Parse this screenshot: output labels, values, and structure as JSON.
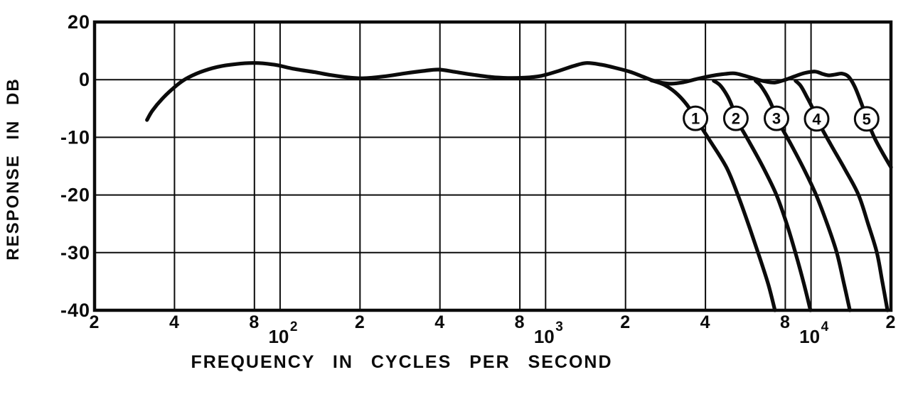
{
  "figure": {
    "background": "#ffffff",
    "ink": "#0b0b0b"
  },
  "chart_data": {
    "type": "line",
    "title": "",
    "xlabel": "FREQUENCY IN CYCLES PER SECOND",
    "ylabel": "RESPONSE IN DB",
    "x_scale": "log",
    "x_range_hz": [
      20,
      20000
    ],
    "grid": "on",
    "y_ticks": [
      {
        "label": "20",
        "db": 20
      },
      {
        "label": "0",
        "db": 0
      },
      {
        "label": "-10",
        "db": -10
      },
      {
        "label": "-20",
        "db": -20
      },
      {
        "label": "-30",
        "db": -30
      },
      {
        "label": "-40",
        "db": -40
      }
    ],
    "x_ticks": [
      {
        "label": "2",
        "hz": 20
      },
      {
        "label": "4",
        "hz": 40
      },
      {
        "label": "8",
        "hz": 80
      },
      {
        "label": "10",
        "exp": "2",
        "hz": 100
      },
      {
        "label": "2",
        "hz": 200
      },
      {
        "label": "4",
        "hz": 400
      },
      {
        "label": "8",
        "hz": 800
      },
      {
        "label": "10",
        "exp": "3",
        "hz": 1000
      },
      {
        "label": "2",
        "hz": 2000
      },
      {
        "label": "4",
        "hz": 4000
      },
      {
        "label": "8",
        "hz": 8000
      },
      {
        "label": "10",
        "exp": "4",
        "hz": 10000
      },
      {
        "label": "2",
        "hz": 20000
      }
    ],
    "series": [
      {
        "name": "common-response-and-position-5-rolloff",
        "points": [
          [
            31.5,
            -7.0
          ],
          [
            33,
            -5.4
          ],
          [
            36,
            -3.3
          ],
          [
            40,
            -1.3
          ],
          [
            44,
            0.1
          ],
          [
            50,
            1.3
          ],
          [
            58,
            2.2
          ],
          [
            68,
            2.7
          ],
          [
            80,
            2.9
          ],
          [
            95,
            2.6
          ],
          [
            112,
            1.9
          ],
          [
            135,
            1.3
          ],
          [
            155,
            0.8
          ],
          [
            180,
            0.4
          ],
          [
            205,
            0.25
          ],
          [
            245,
            0.55
          ],
          [
            295,
            1.1
          ],
          [
            345,
            1.5
          ],
          [
            395,
            1.75
          ],
          [
            455,
            1.35
          ],
          [
            535,
            0.85
          ],
          [
            625,
            0.45
          ],
          [
            720,
            0.3
          ],
          [
            835,
            0.35
          ],
          [
            960,
            0.65
          ],
          [
            1100,
            1.4
          ],
          [
            1280,
            2.4
          ],
          [
            1430,
            2.9
          ],
          [
            1620,
            2.6
          ],
          [
            1850,
            2.0
          ],
          [
            2100,
            1.3
          ],
          [
            2330,
            0.5
          ],
          [
            2540,
            -0.15
          ],
          [
            2750,
            -0.55
          ],
          [
            2980,
            -0.7
          ],
          [
            3300,
            -0.45
          ],
          [
            3700,
            0.1
          ],
          [
            4200,
            0.65
          ],
          [
            4750,
            1.0
          ],
          [
            5150,
            1.1
          ],
          [
            5600,
            0.7
          ],
          [
            6100,
            0.2
          ],
          [
            6700,
            -0.3
          ],
          [
            7300,
            -0.5
          ],
          [
            7950,
            -0.05
          ],
          [
            8650,
            0.55
          ],
          [
            9450,
            1.15
          ],
          [
            10350,
            1.4
          ],
          [
            11050,
            1.0
          ],
          [
            11650,
            0.75
          ],
          [
            12350,
            0.9
          ],
          [
            13100,
            1.05
          ],
          [
            13850,
            0.5
          ],
          [
            14600,
            -1.2
          ],
          [
            15450,
            -4.0
          ],
          [
            16200,
            -6.8
          ],
          [
            17300,
            -10.0
          ],
          [
            18600,
            -12.7
          ],
          [
            20000,
            -15.2
          ]
        ]
      },
      {
        "name": "position-1-rolloff",
        "points": [
          [
            2500,
            -0.1
          ],
          [
            2800,
            -0.9
          ],
          [
            3100,
            -2.3
          ],
          [
            3400,
            -4.3
          ],
          [
            3670,
            -6.7
          ],
          [
            4150,
            -10.5
          ],
          [
            4800,
            -15.2
          ],
          [
            5300,
            -20
          ],
          [
            5900,
            -26
          ],
          [
            6420,
            -31
          ],
          [
            6900,
            -35.5
          ],
          [
            7310,
            -40
          ]
        ]
      },
      {
        "name": "position-2-rolloff",
        "points": [
          [
            4300,
            -0.2
          ],
          [
            4550,
            -1.0
          ],
          [
            4850,
            -2.9
          ],
          [
            5050,
            -4.7
          ],
          [
            5210,
            -6.7
          ],
          [
            5850,
            -10.8
          ],
          [
            6600,
            -15.2
          ],
          [
            7410,
            -20
          ],
          [
            8100,
            -25
          ],
          [
            8730,
            -30
          ],
          [
            9350,
            -35
          ],
          [
            9950,
            -40
          ]
        ]
      },
      {
        "name": "position-3-rolloff",
        "points": [
          [
            6180,
            -0.2
          ],
          [
            6450,
            -1.0
          ],
          [
            6850,
            -2.9
          ],
          [
            7150,
            -4.7
          ],
          [
            7410,
            -6.7
          ],
          [
            8350,
            -11
          ],
          [
            9350,
            -15.3
          ],
          [
            10450,
            -20
          ],
          [
            11500,
            -25
          ],
          [
            12500,
            -30
          ],
          [
            13250,
            -35
          ],
          [
            14000,
            -40
          ]
        ]
      },
      {
        "name": "position-4-rolloff",
        "points": [
          [
            8740,
            -0.2
          ],
          [
            9150,
            -1.1
          ],
          [
            9650,
            -3.0
          ],
          [
            10100,
            -4.8
          ],
          [
            10500,
            -6.8
          ],
          [
            11850,
            -11.2
          ],
          [
            13400,
            -15.5
          ],
          [
            15100,
            -20
          ],
          [
            16400,
            -25
          ],
          [
            17700,
            -30
          ],
          [
            18550,
            -35
          ],
          [
            19400,
            -40
          ]
        ]
      }
    ],
    "markers": [
      {
        "label": "1",
        "hz": 3670,
        "db": -6.7
      },
      {
        "label": "2",
        "hz": 5210,
        "db": -6.7
      },
      {
        "label": "3",
        "hz": 7410,
        "db": -6.7
      },
      {
        "label": "4",
        "hz": 10500,
        "db": -6.8
      },
      {
        "label": "5",
        "hz": 16200,
        "db": -6.8
      }
    ]
  }
}
